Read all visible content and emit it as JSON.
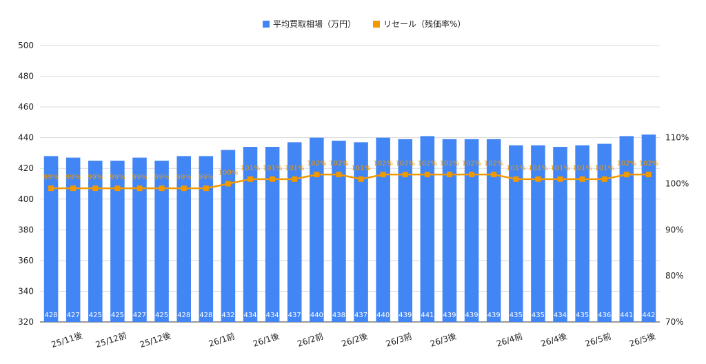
{
  "chart_data": {
    "type": "bar",
    "legend": {
      "position": "top-center"
    },
    "grid": true,
    "categories": [
      "25/11後",
      "25/11後",
      "25/11後",
      "25/12前",
      "25/12前",
      "25/12後",
      "25/12後",
      "25/12後",
      "26/1前",
      "26/1前",
      "26/1後",
      "26/1後",
      "26/2前",
      "26/2前",
      "26/2後",
      "26/2後",
      "26/3前",
      "26/3前",
      "26/3後",
      "26/3後",
      "26/3後",
      "26/4前",
      "26/4前",
      "26/4後",
      "26/4後",
      "26/5前",
      "26/5前",
      "26/5後"
    ],
    "x_tick_labels": [
      {
        "index": 1,
        "label": "25/11後"
      },
      {
        "index": 3,
        "label": "25/12前"
      },
      {
        "index": 5,
        "label": "25/12後"
      },
      {
        "index": 8,
        "label": "26/1前"
      },
      {
        "index": 10,
        "label": "26/1後"
      },
      {
        "index": 12,
        "label": "26/2前"
      },
      {
        "index": 14,
        "label": "26/2後"
      },
      {
        "index": 16,
        "label": "26/3前"
      },
      {
        "index": 18,
        "label": "26/3後"
      },
      {
        "index": 21,
        "label": "26/4前"
      },
      {
        "index": 23,
        "label": "26/4後"
      },
      {
        "index": 25,
        "label": "26/5前"
      },
      {
        "index": 27,
        "label": "26/5後"
      }
    ],
    "y_left": {
      "min": 320,
      "max": 500,
      "ticks": [
        "320",
        "340",
        "360",
        "380",
        "400",
        "420",
        "440",
        "460",
        "480",
        "500"
      ]
    },
    "y_right": {
      "min": 70,
      "max": 130,
      "ticks": [
        {
          "value": 70,
          "label": "70%"
        },
        {
          "value": 80,
          "label": "80%"
        },
        {
          "value": 90,
          "label": "90%"
        },
        {
          "value": 100,
          "label": "100%"
        },
        {
          "value": 110,
          "label": "110%"
        }
      ]
    },
    "series": [
      {
        "name": "平均買取相場（万円）",
        "kind": "bar",
        "axis": "left",
        "color": "#4285f4",
        "values": [
          428,
          427,
          425,
          425,
          427,
          425,
          428,
          428,
          432,
          434,
          434,
          437,
          440,
          438,
          437,
          440,
          439,
          441,
          439,
          439,
          439,
          435,
          435,
          434,
          435,
          436,
          441,
          442
        ]
      },
      {
        "name": "リセール（残価率%）",
        "kind": "line",
        "axis": "right",
        "color": "#f29900",
        "values": [
          99,
          99,
          99,
          99,
          99,
          99,
          99,
          99,
          100,
          101,
          101,
          101,
          102,
          102,
          101,
          102,
          102,
          102,
          102,
          102,
          102,
          101,
          101,
          101,
          101,
          101,
          102,
          102
        ],
        "labels": [
          "99%",
          "99%",
          "99%",
          "99%",
          "99%",
          "99%",
          "99%",
          "99%",
          "100%",
          "101%",
          "101%",
          "101%",
          "102%",
          "102%",
          "101%",
          "102%",
          "102%",
          "102%",
          "102%",
          "102%",
          "102%",
          "101%",
          "101%",
          "101%",
          "101%",
          "101%",
          "102%",
          "102%"
        ]
      }
    ]
  }
}
